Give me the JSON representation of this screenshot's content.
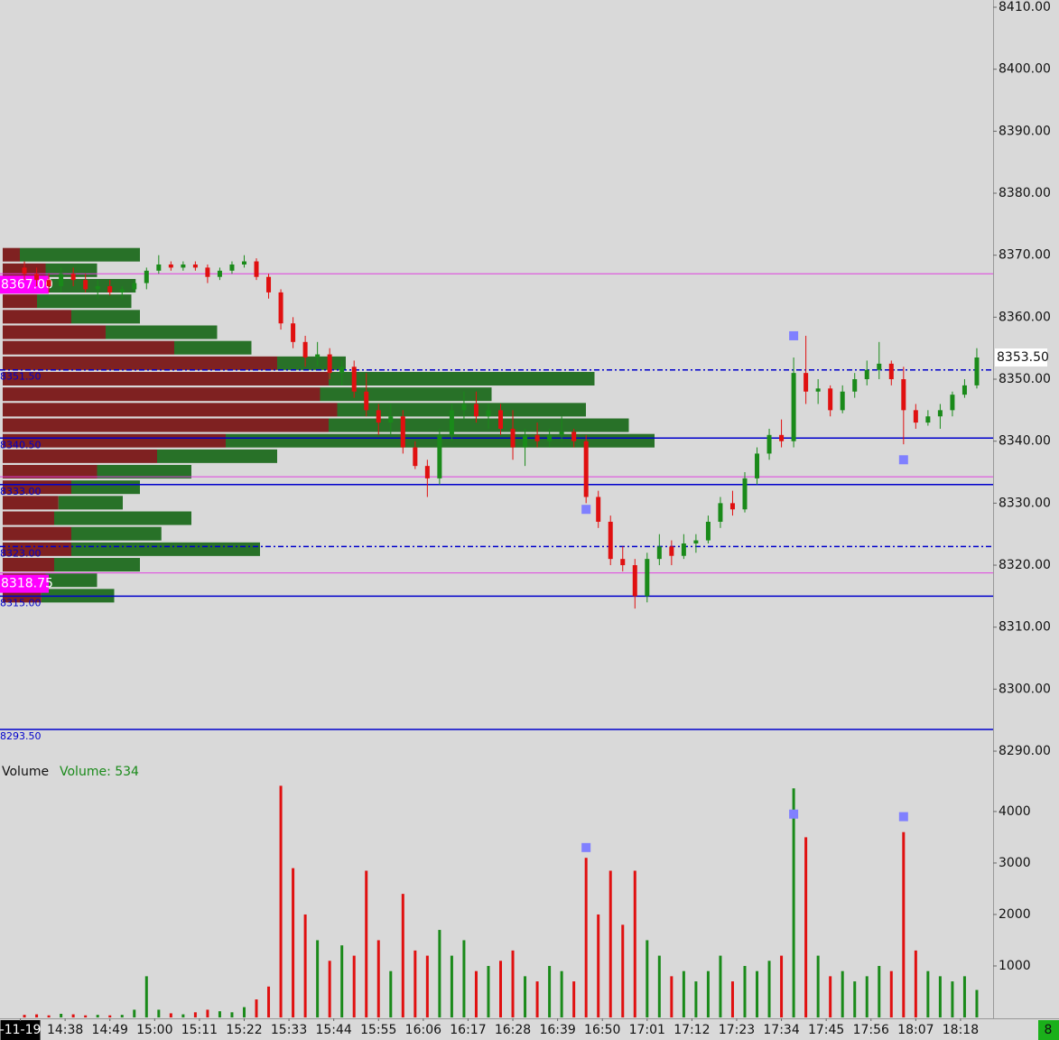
{
  "chart_data": {
    "type": "candlestick",
    "volume_title": "Volume",
    "volume_label": "Volume: 534",
    "status": "8",
    "up_color": "#1a8a1a",
    "down_color": "#e01010",
    "xlim": [
      "14:22",
      "18:26"
    ],
    "ylim": [
      8286,
      8410
    ],
    "yticks": [
      {
        "value": 8290,
        "label": "8290.00"
      },
      {
        "value": 8300,
        "label": "8300.00"
      },
      {
        "value": 8310,
        "label": "8310.00"
      },
      {
        "value": 8320,
        "label": "8320.00"
      },
      {
        "value": 8330,
        "label": "8330.00"
      },
      {
        "value": 8340,
        "label": "8340.00"
      },
      {
        "value": 8350,
        "label": "8350.00"
      },
      {
        "value": 8360,
        "label": "8360.00"
      },
      {
        "value": 8370,
        "label": "8370.00"
      },
      {
        "value": 8380,
        "label": "8380.00"
      },
      {
        "value": 8390,
        "label": "8390.00"
      },
      {
        "value": 8400,
        "label": "8400.00"
      },
      {
        "value": 8410,
        "label": "8410.00"
      }
    ],
    "vol_ylim": [
      0,
      4700
    ],
    "vol_yticks": [
      1000,
      2000,
      3000,
      4000
    ],
    "xticks": [
      {
        "value": "14:27",
        "label": "-11-19"
      },
      "14:38",
      "14:49",
      "15:00",
      "15:11",
      "15:22",
      "15:33",
      "15:44",
      "15:55",
      "16:06",
      "16:17",
      "16:28",
      "16:39",
      "16:50",
      "17:01",
      "17:12",
      "17:23",
      "17:34",
      "17:45",
      "17:56",
      "18:07",
      "18:18"
    ],
    "last_price": {
      "value": 8353.5,
      "label": "8353.50"
    },
    "levels": [
      {
        "value": 8367,
        "label": "8367.00",
        "color": "#e040e0",
        "style": "solid",
        "label_style": "box"
      },
      {
        "value": 8351.5,
        "label": "8351.50",
        "color": "#0000cc",
        "style": "dashdot",
        "label_style": "text"
      },
      {
        "value": 8340.5,
        "label": "8340.50",
        "color": "#0000cc",
        "style": "solid",
        "label_style": "text"
      },
      {
        "value": 8334.25,
        "color": "#e040e0",
        "style": "solid"
      },
      {
        "value": 8333,
        "label": "8333.00",
        "color": "#0000cc",
        "style": "solid",
        "label_style": "text"
      },
      {
        "value": 8323,
        "label": "8323.00",
        "color": "#0000cc",
        "style": "dashdot",
        "label_style": "text"
      },
      {
        "value": 8318.75,
        "label": "8318.75",
        "color": "#e040e0",
        "style": "solid",
        "label_style": "box"
      },
      {
        "value": 8315,
        "label": "8315.00",
        "color": "#0000cc",
        "style": "solid",
        "label_style": "text"
      },
      {
        "value": 8293.5,
        "label": "8293.50",
        "color": "#0000cc",
        "style": "solid",
        "label_style": "text"
      }
    ],
    "profile": {
      "xlim": [
        0,
        8000
      ],
      "sell_color": "#7a1717",
      "buy_color": "#1f6b1f",
      "prices": [
        8370,
        8367.5,
        8365,
        8362.5,
        8360,
        8357.5,
        8355,
        8352.5,
        8350,
        8347.5,
        8345,
        8342.5,
        8340,
        8337.5,
        8335,
        8332.5,
        8330,
        8327.5,
        8325,
        8322.5,
        8320,
        8317.5,
        8315
      ],
      "sell": [
        200,
        500,
        300,
        400,
        800,
        1200,
        2000,
        3200,
        3800,
        3700,
        3900,
        3800,
        2600,
        1800,
        1100,
        800,
        650,
        600,
        800,
        800,
        600,
        500,
        450
      ],
      "buy": [
        1400,
        600,
        1250,
        1100,
        800,
        1300,
        900,
        800,
        3100,
        2000,
        2900,
        3500,
        5000,
        1400,
        1100,
        800,
        750,
        1600,
        1050,
        2200,
        1000,
        600,
        850
      ]
    },
    "signals": {
      "color": "#8080ff",
      "times": [
        "16:46",
        "17:37",
        "18:04"
      ],
      "prices": [
        8329,
        8357,
        8337
      ],
      "volumes": [
        3300,
        3950,
        3900
      ]
    },
    "bars": [
      {
        "time": "14:28",
        "open": 8368,
        "high": 8369,
        "low": 8366,
        "close": 8367,
        "volume": 50
      },
      {
        "time": "14:31",
        "open": 8367,
        "high": 8368,
        "low": 8365,
        "close": 8366,
        "volume": 60
      },
      {
        "time": "14:34",
        "open": 8366,
        "high": 8367,
        "low": 8364,
        "close": 8365,
        "volume": 40
      },
      {
        "time": "14:37",
        "open": 8365,
        "high": 8368,
        "low": 8364,
        "close": 8367,
        "volume": 70
      },
      {
        "time": "14:40",
        "open": 8367,
        "high": 8368,
        "low": 8365,
        "close": 8366,
        "volume": 60
      },
      {
        "time": "14:43",
        "open": 8366,
        "high": 8367,
        "low": 8364,
        "close": 8364.5,
        "volume": 40
      },
      {
        "time": "14:46",
        "open": 8364.5,
        "high": 8366,
        "low": 8363,
        "close": 8365,
        "volume": 50
      },
      {
        "time": "14:49",
        "open": 8365,
        "high": 8366,
        "low": 8363.5,
        "close": 8364,
        "volume": 40
      },
      {
        "time": "14:52",
        "open": 8364,
        "high": 8365,
        "low": 8363,
        "close": 8364.5,
        "volume": 50
      },
      {
        "time": "14:55",
        "open": 8364.5,
        "high": 8366,
        "low": 8364,
        "close": 8365.5,
        "volume": 150
      },
      {
        "time": "14:58",
        "open": 8365.5,
        "high": 8368,
        "low": 8364.5,
        "close": 8367.5,
        "volume": 800
      },
      {
        "time": "15:01",
        "open": 8367.5,
        "high": 8370,
        "low": 8367,
        "close": 8368.5,
        "volume": 150
      },
      {
        "time": "15:04",
        "open": 8368.5,
        "high": 8369,
        "low": 8367.5,
        "close": 8368,
        "volume": 80
      },
      {
        "time": "15:07",
        "open": 8368,
        "high": 8369,
        "low": 8367.5,
        "close": 8368.5,
        "volume": 60
      },
      {
        "time": "15:10",
        "open": 8368.5,
        "high": 8369,
        "low": 8367.5,
        "close": 8368,
        "volume": 100
      },
      {
        "time": "15:13",
        "open": 8368,
        "high": 8368.5,
        "low": 8365.5,
        "close": 8366.5,
        "volume": 150
      },
      {
        "time": "15:16",
        "open": 8366.5,
        "high": 8368,
        "low": 8366,
        "close": 8367.5,
        "volume": 120
      },
      {
        "time": "15:19",
        "open": 8367.5,
        "high": 8369,
        "low": 8367,
        "close": 8368.5,
        "volume": 100
      },
      {
        "time": "15:22",
        "open": 8368.5,
        "high": 8370,
        "low": 8368,
        "close": 8369,
        "volume": 200
      },
      {
        "time": "15:25",
        "open": 8369,
        "high": 8369.5,
        "low": 8366,
        "close": 8366.5,
        "volume": 350
      },
      {
        "time": "15:28",
        "open": 8366.5,
        "high": 8367,
        "low": 8363,
        "close": 8364,
        "volume": 600
      },
      {
        "time": "15:31",
        "open": 8364,
        "high": 8364.5,
        "low": 8358,
        "close": 8359,
        "volume": 4500
      },
      {
        "time": "15:34",
        "open": 8359,
        "high": 8360,
        "low": 8355,
        "close": 8356,
        "volume": 2900
      },
      {
        "time": "15:37",
        "open": 8356,
        "high": 8357,
        "low": 8352,
        "close": 8353.5,
        "volume": 2000
      },
      {
        "time": "15:40",
        "open": 8353.5,
        "high": 8356,
        "low": 8352,
        "close": 8354,
        "volume": 1500
      },
      {
        "time": "15:43",
        "open": 8354,
        "high": 8355,
        "low": 8350,
        "close": 8351,
        "volume": 1100
      },
      {
        "time": "15:46",
        "open": 8351,
        "high": 8353,
        "low": 8349,
        "close": 8352,
        "volume": 1400
      },
      {
        "time": "15:49",
        "open": 8352,
        "high": 8353,
        "low": 8347,
        "close": 8348,
        "volume": 1200
      },
      {
        "time": "15:52",
        "open": 8348,
        "high": 8351,
        "low": 8344,
        "close": 8345,
        "volume": 2850
      },
      {
        "time": "15:55",
        "open": 8345,
        "high": 8346,
        "low": 8341,
        "close": 8343,
        "volume": 1500
      },
      {
        "time": "15:58",
        "open": 8343,
        "high": 8346,
        "low": 8341,
        "close": 8344,
        "volume": 900
      },
      {
        "time": "16:01",
        "open": 8344,
        "high": 8345,
        "low": 8338,
        "close": 8339,
        "volume": 2400
      },
      {
        "time": "16:04",
        "open": 8339,
        "high": 8340,
        "low": 8335.5,
        "close": 8336,
        "volume": 1300
      },
      {
        "time": "16:07",
        "open": 8336,
        "high": 8337,
        "low": 8331,
        "close": 8334,
        "volume": 1200
      },
      {
        "time": "16:10",
        "open": 8334,
        "high": 8342,
        "low": 8333,
        "close": 8341,
        "volume": 1700
      },
      {
        "time": "16:13",
        "open": 8341,
        "high": 8346,
        "low": 8340,
        "close": 8345,
        "volume": 1200
      },
      {
        "time": "16:16",
        "open": 8345,
        "high": 8348,
        "low": 8343.5,
        "close": 8346,
        "volume": 1500
      },
      {
        "time": "16:19",
        "open": 8346,
        "high": 8348,
        "low": 8343,
        "close": 8344,
        "volume": 900
      },
      {
        "time": "16:22",
        "open": 8344,
        "high": 8346,
        "low": 8342,
        "close": 8345,
        "volume": 1000
      },
      {
        "time": "16:25",
        "open": 8345,
        "high": 8346,
        "low": 8341,
        "close": 8342,
        "volume": 1100
      },
      {
        "time": "16:28",
        "open": 8342,
        "high": 8345,
        "low": 8337,
        "close": 8339,
        "volume": 1300
      },
      {
        "time": "16:31",
        "open": 8339,
        "high": 8342,
        "low": 8336,
        "close": 8341,
        "volume": 800
      },
      {
        "time": "16:34",
        "open": 8341,
        "high": 8343,
        "low": 8339,
        "close": 8340,
        "volume": 700
      },
      {
        "time": "16:37",
        "open": 8340,
        "high": 8342,
        "low": 8339,
        "close": 8341,
        "volume": 1000
      },
      {
        "time": "16:40",
        "open": 8341,
        "high": 8344,
        "low": 8340,
        "close": 8341.5,
        "volume": 900
      },
      {
        "time": "16:43",
        "open": 8341.5,
        "high": 8342,
        "low": 8339,
        "close": 8340,
        "volume": 700
      },
      {
        "time": "16:46",
        "open": 8340,
        "high": 8341,
        "low": 8330,
        "close": 8331,
        "volume": 3100
      },
      {
        "time": "16:49",
        "open": 8331,
        "high": 8332,
        "low": 8326,
        "close": 8327,
        "volume": 2000
      },
      {
        "time": "16:52",
        "open": 8327,
        "high": 8328,
        "low": 8320,
        "close": 8321,
        "volume": 2850
      },
      {
        "time": "16:55",
        "open": 8321,
        "high": 8323,
        "low": 8319,
        "close": 8320,
        "volume": 1800
      },
      {
        "time": "16:58",
        "open": 8320,
        "high": 8321,
        "low": 8313,
        "close": 8315,
        "volume": 2850
      },
      {
        "time": "17:01",
        "open": 8315,
        "high": 8322,
        "low": 8314,
        "close": 8321,
        "volume": 1500
      },
      {
        "time": "17:04",
        "open": 8321,
        "high": 8325,
        "low": 8320,
        "close": 8323,
        "volume": 1200
      },
      {
        "time": "17:07",
        "open": 8323,
        "high": 8324,
        "low": 8320,
        "close": 8321.5,
        "volume": 800
      },
      {
        "time": "17:10",
        "open": 8321.5,
        "high": 8325,
        "low": 8321,
        "close": 8323.5,
        "volume": 900
      },
      {
        "time": "17:13",
        "open": 8323.5,
        "high": 8325,
        "low": 8322,
        "close": 8324,
        "volume": 700
      },
      {
        "time": "17:16",
        "open": 8324,
        "high": 8328,
        "low": 8323.5,
        "close": 8327,
        "volume": 900
      },
      {
        "time": "17:19",
        "open": 8327,
        "high": 8331,
        "low": 8326,
        "close": 8330,
        "volume": 1200
      },
      {
        "time": "17:22",
        "open": 8330,
        "high": 8332,
        "low": 8328,
        "close": 8329,
        "volume": 700
      },
      {
        "time": "17:25",
        "open": 8329,
        "high": 8335,
        "low": 8328.5,
        "close": 8334,
        "volume": 1000
      },
      {
        "time": "17:28",
        "open": 8334,
        "high": 8339,
        "low": 8333,
        "close": 8338,
        "volume": 900
      },
      {
        "time": "17:31",
        "open": 8338,
        "high": 8342,
        "low": 8337,
        "close": 8341,
        "volume": 1100
      },
      {
        "time": "17:34",
        "open": 8341,
        "high": 8343.5,
        "low": 8339,
        "close": 8340,
        "volume": 1200
      },
      {
        "time": "17:37",
        "open": 8340,
        "high": 8353.5,
        "low": 8339,
        "close": 8351,
        "volume": 4450
      },
      {
        "time": "17:40",
        "open": 8351,
        "high": 8357,
        "low": 8346,
        "close": 8348,
        "volume": 3500
      },
      {
        "time": "17:43",
        "open": 8348,
        "high": 8350,
        "low": 8346,
        "close": 8348.5,
        "volume": 1200
      },
      {
        "time": "17:46",
        "open": 8348.5,
        "high": 8349,
        "low": 8344,
        "close": 8345,
        "volume": 800
      },
      {
        "time": "17:49",
        "open": 8345,
        "high": 8349,
        "low": 8344.5,
        "close": 8348,
        "volume": 900
      },
      {
        "time": "17:52",
        "open": 8348,
        "high": 8351,
        "low": 8347,
        "close": 8350,
        "volume": 700
      },
      {
        "time": "17:55",
        "open": 8350,
        "high": 8353,
        "low": 8349,
        "close": 8351.5,
        "volume": 800
      },
      {
        "time": "17:58",
        "open": 8351.5,
        "high": 8356,
        "low": 8350,
        "close": 8352.5,
        "volume": 1000
      },
      {
        "time": "18:01",
        "open": 8352.5,
        "high": 8353,
        "low": 8349,
        "close": 8350,
        "volume": 900
      },
      {
        "time": "18:04",
        "open": 8350,
        "high": 8352,
        "low": 8339.5,
        "close": 8345,
        "volume": 3600
      },
      {
        "time": "18:07",
        "open": 8345,
        "high": 8346,
        "low": 8342,
        "close": 8343,
        "volume": 1300
      },
      {
        "time": "18:10",
        "open": 8343,
        "high": 8345,
        "low": 8342.5,
        "close": 8344,
        "volume": 900
      },
      {
        "time": "18:13",
        "open": 8344,
        "high": 8346,
        "low": 8342,
        "close": 8345,
        "volume": 800
      },
      {
        "time": "18:16",
        "open": 8345,
        "high": 8348,
        "low": 8344,
        "close": 8347.5,
        "volume": 700
      },
      {
        "time": "18:19",
        "open": 8347.5,
        "high": 8350,
        "low": 8347,
        "close": 8349,
        "volume": 800
      },
      {
        "time": "18:22",
        "open": 8349,
        "high": 8355,
        "low": 8348.5,
        "close": 8353.5,
        "volume": 534
      }
    ]
  }
}
